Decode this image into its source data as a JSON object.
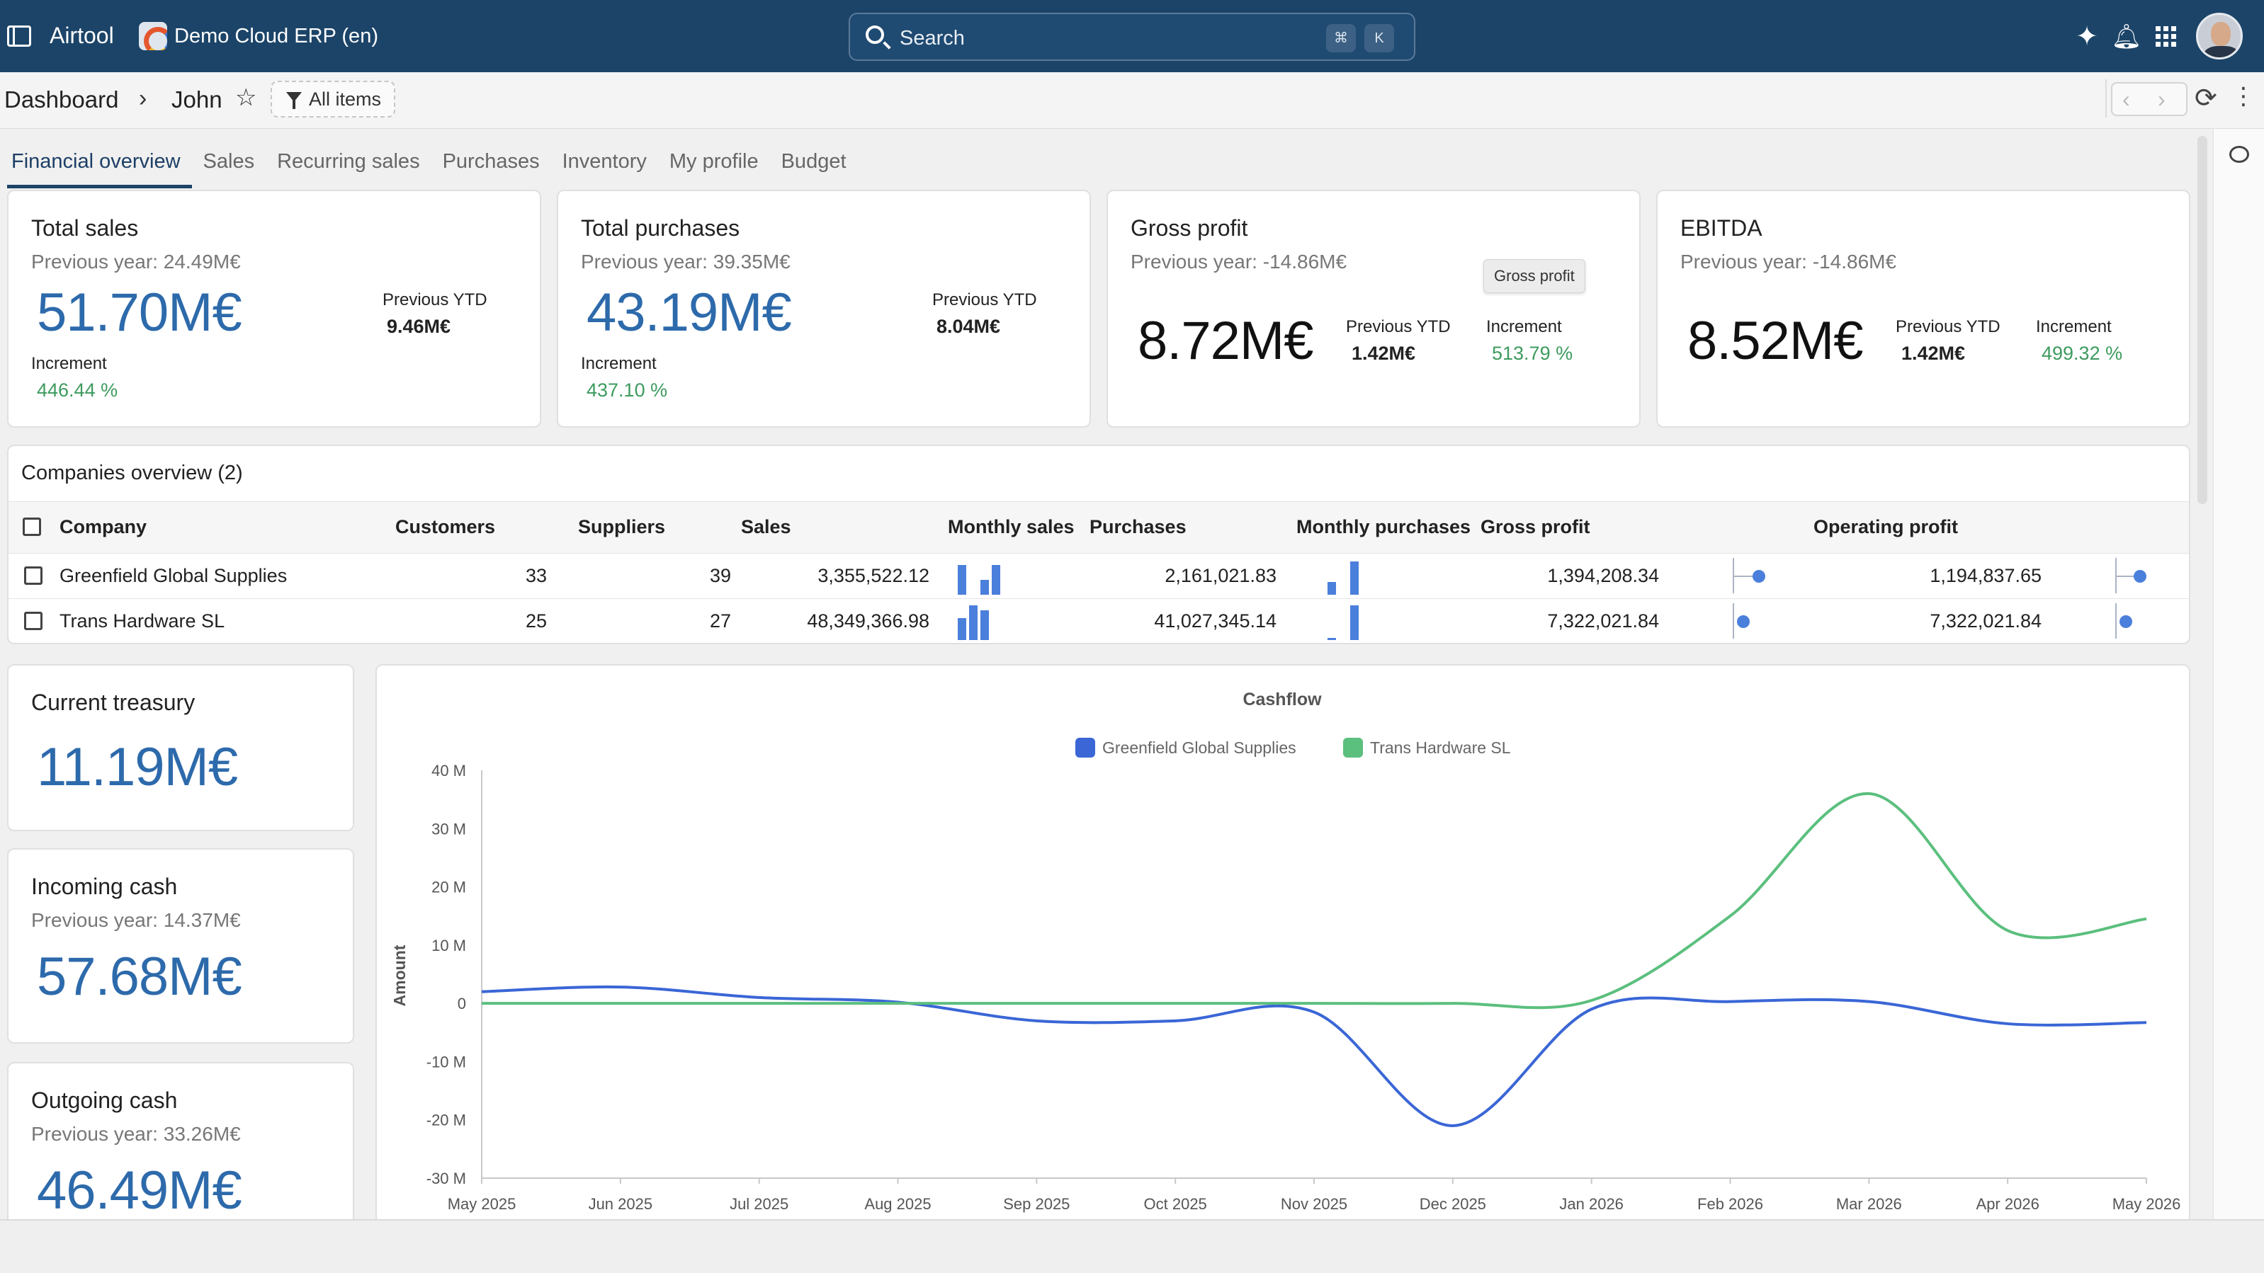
{
  "topbar": {
    "app_name": "Airtool",
    "company_name": "Demo Cloud ERP (en)",
    "search_placeholder": "Search",
    "shortcut_key1": "⌘",
    "shortcut_key2": "K",
    "icons": [
      "sidebar-toggle-icon",
      "ai-sparkle-icon",
      "bell-icon",
      "apps-grid-icon",
      "avatar"
    ]
  },
  "breadcrumb": {
    "root": "Dashboard",
    "current": "John",
    "filter": "All items"
  },
  "tabs": [
    "Financial overview",
    "Sales",
    "Recurring sales",
    "Purchases",
    "Inventory",
    "My profile",
    "Budget"
  ],
  "kpis": {
    "total_sales": {
      "title": "Total sales",
      "prev_year": "Previous year: 24.49M€",
      "value": "51.70M€",
      "prev_ytd_label": "Previous YTD",
      "prev_ytd": "9.46M€",
      "increment_label": "Increment",
      "increment": "446.44 %"
    },
    "total_purchases": {
      "title": "Total purchases",
      "prev_year": "Previous year: 39.35M€",
      "value": "43.19M€",
      "prev_ytd_label": "Previous YTD",
      "prev_ytd": "8.04M€",
      "increment_label": "Increment",
      "increment": "437.10 %"
    },
    "gross_profit": {
      "title": "Gross profit",
      "prev_year": "Previous year: -14.86M€",
      "value": "8.72M€",
      "prev_ytd_label": "Previous YTD",
      "prev_ytd": "1.42M€",
      "increment_label": "Increment",
      "increment": "513.79 %",
      "tooltip": "Gross profit"
    },
    "ebitda": {
      "title": "EBITDA",
      "prev_year": "Previous year: -14.86M€",
      "value": "8.52M€",
      "prev_ytd_label": "Previous YTD",
      "prev_ytd": "1.42M€",
      "increment_label": "Increment",
      "increment": "499.32 %"
    }
  },
  "companies": {
    "title": "Companies overview (2)",
    "columns": [
      "Company",
      "Customers",
      "Suppliers",
      "Sales",
      "Monthly sales",
      "Purchases",
      "Monthly purchases",
      "Gross profit",
      "Operating profit"
    ],
    "rows": [
      {
        "company": "Greenfield Global Supplies",
        "customers": "33",
        "suppliers": "39",
        "sales": "3,355,522.12",
        "monthly_sales": [
          0.0,
          0.8,
          0.0,
          0.4,
          0.8
        ],
        "purchases": "2,161,021.83",
        "monthly_purchases": [
          0.0,
          0.0,
          0.35,
          0.0,
          0.9
        ],
        "gross_profit": "1,394,208.34",
        "operating_profit": "1,194,837.65"
      },
      {
        "company": "Trans Hardware SL",
        "customers": "25",
        "suppliers": "27",
        "sales": "48,349,366.98",
        "monthly_sales": [
          0.0,
          0.6,
          0.95,
          0.8,
          0.0
        ],
        "purchases": "41,027,345.14",
        "monthly_purchases": [
          0.0,
          0.0,
          0.05,
          0.0,
          0.95
        ],
        "gross_profit": "7,322,021.84",
        "operating_profit": "7,322,021.84"
      }
    ]
  },
  "cash": {
    "treasury": {
      "title": "Current treasury",
      "value": "11.19M€"
    },
    "incoming": {
      "title": "Incoming cash",
      "prev_year": "Previous year: 14.37M€",
      "value": "57.68M€"
    },
    "outgoing": {
      "title": "Outgoing cash",
      "prev_year": "Previous year: 33.26M€",
      "value": "46.49M€"
    }
  },
  "colors": {
    "accent": "#1c4468",
    "kpi_blue": "#2d6aab",
    "positive": "#3d9b5e",
    "series_blue": "#3a66d6",
    "series_green": "#5bbf7e"
  },
  "chart_data": {
    "type": "line",
    "title": "Cashflow",
    "ylabel": "Amount",
    "xlabel": "",
    "x": [
      "May 2025",
      "Jun 2025",
      "Jul 2025",
      "Aug 2025",
      "Sep 2025",
      "Oct 2025",
      "Nov 2025",
      "Dec 2025",
      "Jan 2026",
      "Feb 2026",
      "Mar 2026",
      "Apr 2026",
      "May 2026"
    ],
    "yticks": [
      "40 M",
      "30 M",
      "20 M",
      "10 M",
      "0",
      "-10 M",
      "-20 M",
      "-30 M"
    ],
    "ylim": [
      -30,
      40
    ],
    "legend_position": "top-center",
    "series": [
      {
        "name": "Greenfield Global Supplies",
        "color": "#3a66d6",
        "values": [
          2,
          2.8,
          1,
          0.2,
          -3,
          -3,
          -1.5,
          -21,
          -1,
          0.3,
          0.3,
          -3.5,
          -3.3
        ]
      },
      {
        "name": "Trans Hardware SL",
        "color": "#5bbf7e",
        "values": [
          0,
          0,
          0,
          0,
          0,
          0,
          0,
          0,
          0.5,
          15,
          36,
          12.5,
          14.5
        ]
      }
    ]
  }
}
